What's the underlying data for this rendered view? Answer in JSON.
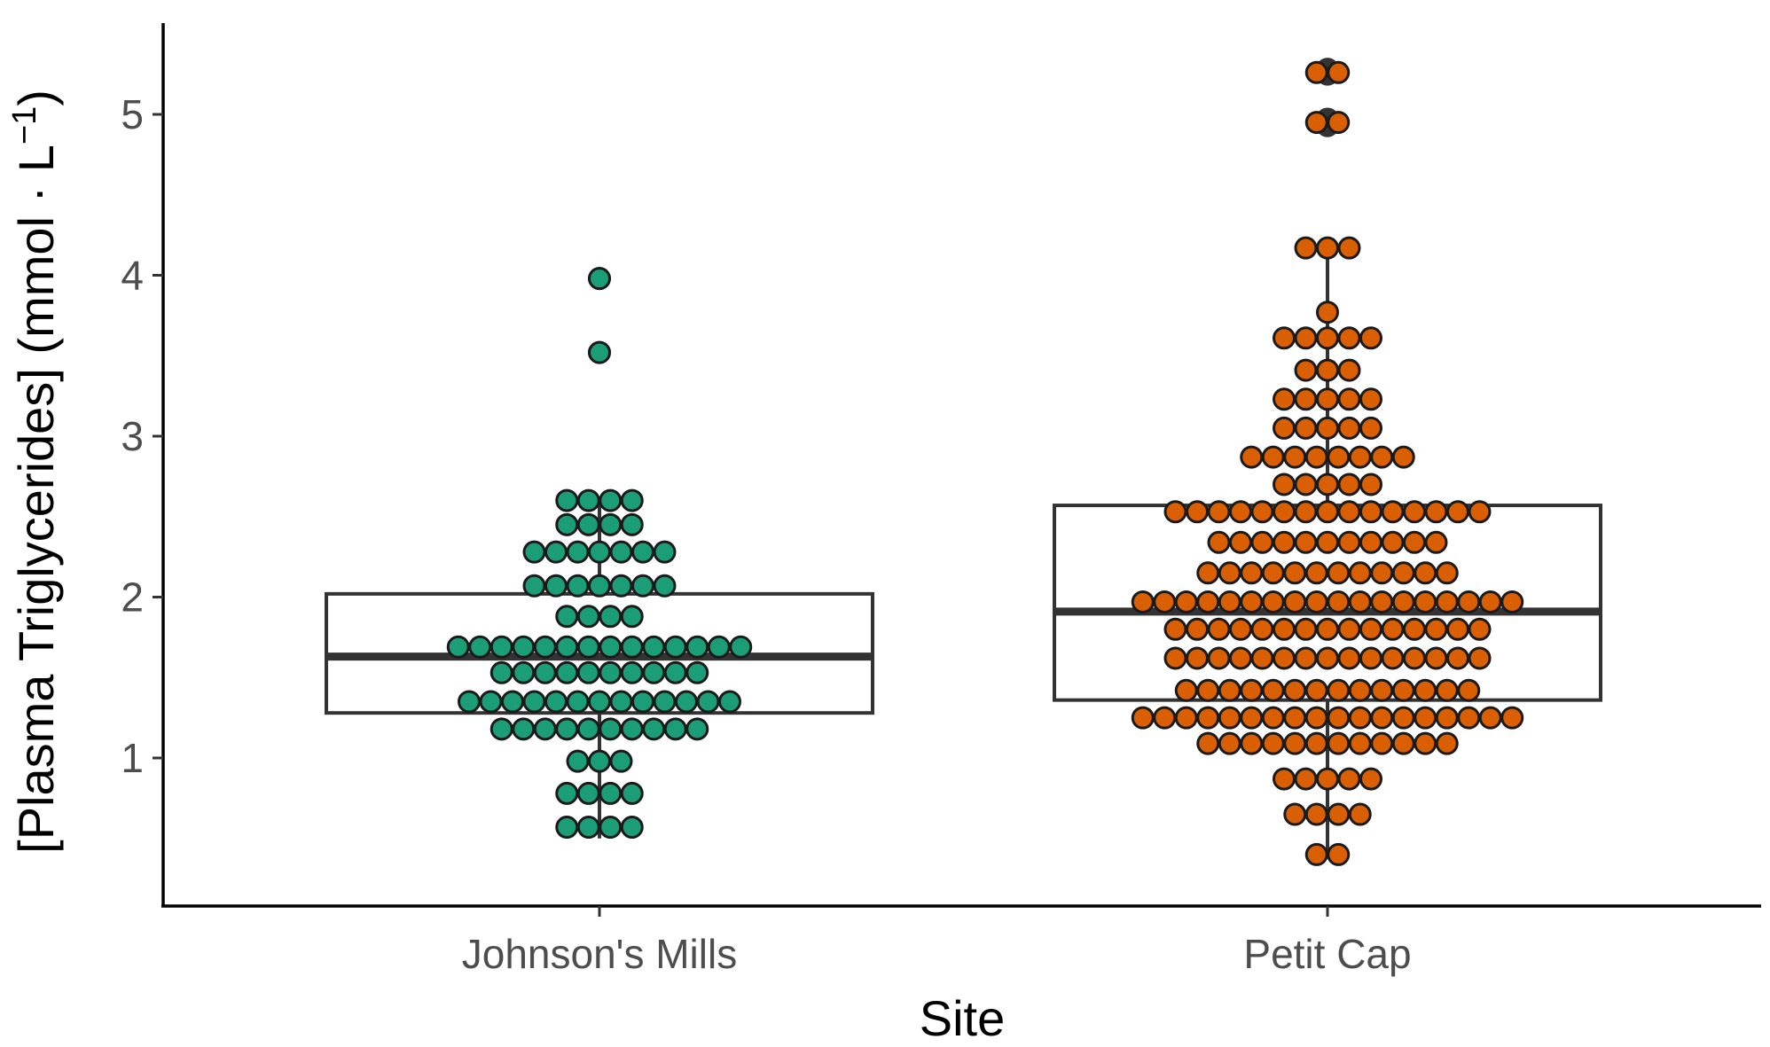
{
  "chart_data": {
    "type": "boxplot with dotplot",
    "xlabel": "Site",
    "ylabel": "[Plasma Triglycerides] (mmol · L",
    "ylabel_superscript": "−1",
    "ylabel_close": ")",
    "yticks": [
      "1",
      "2",
      "3",
      "4",
      "5"
    ],
    "ylim": [
      0.3,
      5.6
    ],
    "grid": false,
    "categories": [
      "Johnson's Mills",
      "Petit Cap"
    ],
    "series": [
      {
        "site": "Johnson's Mills",
        "color": "#1b9e77",
        "box": {
          "lower_whisker": 0.5,
          "q1": 1.28,
          "median": 1.63,
          "q3": 2.02,
          "upper_whisker": 2.6
        },
        "outliers": [
          3.52,
          3.98
        ],
        "dot_rows": [
          {
            "value": 0.57,
            "count": 4
          },
          {
            "value": 0.78,
            "count": 4
          },
          {
            "value": 0.98,
            "count": 3
          },
          {
            "value": 1.18,
            "count": 10
          },
          {
            "value": 1.35,
            "count": 13
          },
          {
            "value": 1.53,
            "count": 10
          },
          {
            "value": 1.69,
            "count": 14
          },
          {
            "value": 1.88,
            "count": 4
          },
          {
            "value": 2.07,
            "count": 7
          },
          {
            "value": 2.28,
            "count": 7
          },
          {
            "value": 2.45,
            "count": 4
          },
          {
            "value": 2.6,
            "count": 4
          },
          {
            "value": 3.52,
            "count": 1
          },
          {
            "value": 3.98,
            "count": 1
          }
        ]
      },
      {
        "site": "Petit Cap",
        "color": "#d95f02",
        "box": {
          "lower_whisker": 0.38,
          "q1": 1.36,
          "median": 1.91,
          "q3": 2.57,
          "upper_whisker": 4.17
        },
        "outliers": [
          4.93,
          4.97,
          5.25,
          5.28
        ],
        "dot_rows": [
          {
            "value": 0.4,
            "count": 2
          },
          {
            "value": 0.65,
            "count": 4
          },
          {
            "value": 0.87,
            "count": 5
          },
          {
            "value": 1.09,
            "count": 12
          },
          {
            "value": 1.25,
            "count": 18
          },
          {
            "value": 1.42,
            "count": 14
          },
          {
            "value": 1.62,
            "count": 15
          },
          {
            "value": 1.8,
            "count": 15
          },
          {
            "value": 1.97,
            "count": 18
          },
          {
            "value": 2.15,
            "count": 12
          },
          {
            "value": 2.34,
            "count": 11
          },
          {
            "value": 2.53,
            "count": 15
          },
          {
            "value": 2.7,
            "count": 5
          },
          {
            "value": 2.87,
            "count": 8
          },
          {
            "value": 3.05,
            "count": 5
          },
          {
            "value": 3.23,
            "count": 5
          },
          {
            "value": 3.41,
            "count": 3
          },
          {
            "value": 3.61,
            "count": 5
          },
          {
            "value": 3.77,
            "count": 1
          },
          {
            "value": 4.17,
            "count": 3
          },
          {
            "value": 4.95,
            "count": 2
          },
          {
            "value": 5.26,
            "count": 2
          }
        ]
      }
    ]
  }
}
